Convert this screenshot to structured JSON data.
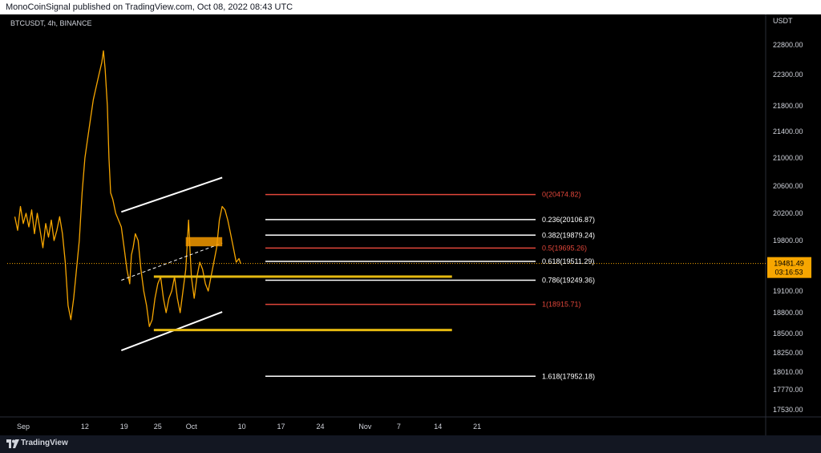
{
  "header": {
    "publish_info": "MonoCoinSignal published on TradingView.com, Oct 08, 2022 08:43 UTC"
  },
  "chart_meta": {
    "symbol_info": "BTCUSDT, 4h, BINANCE",
    "currency": "USDT"
  },
  "price_badge": {
    "price": "19481.49",
    "countdown": "03:16:53",
    "color": "#f7a600"
  },
  "footer": {
    "brand": "TradingView"
  },
  "colors": {
    "background": "#000000",
    "candle": "#f7a600",
    "fib_red": "#e0463a",
    "fib_white": "#ffffff",
    "zone_yellow": "#e5b910",
    "zone_orange": "#f49a00"
  },
  "chart_data": {
    "type": "line",
    "title": "",
    "ylabel": "USDT",
    "xlabel": "",
    "ylim": [
      17400,
      23300
    ],
    "grid": false,
    "y_ticks": [
      "22800.00",
      "22300.00",
      "21800.00",
      "21400.00",
      "21000.00",
      "20600.00",
      "20200.00",
      "19800.00",
      "19100.00",
      "18800.00",
      "18500.00",
      "18250.00",
      "18010.00",
      "17770.00",
      "17530.00"
    ],
    "x_ticks": [
      {
        "label": "Sep",
        "day": 0
      },
      {
        "label": "12",
        "day": 11
      },
      {
        "label": "19",
        "day": 18
      },
      {
        "label": "25",
        "day": 24
      },
      {
        "label": "Oct",
        "day": 30
      },
      {
        "label": "10",
        "day": 39
      },
      {
        "label": "17",
        "day": 46
      },
      {
        "label": "24",
        "day": 53
      },
      {
        "label": "Nov",
        "day": 61
      },
      {
        "label": "7",
        "day": 67
      },
      {
        "label": "14",
        "day": 74
      },
      {
        "label": "21",
        "day": 81
      }
    ],
    "series": [
      {
        "values": [
          [
            -1.5,
            20150
          ],
          [
            -1.0,
            19950
          ],
          [
            -0.5,
            20300
          ],
          [
            0.0,
            20050
          ],
          [
            0.5,
            20200
          ],
          [
            1.0,
            20000
          ],
          [
            1.5,
            20250
          ],
          [
            2.0,
            19900
          ],
          [
            2.5,
            20200
          ],
          [
            3.0,
            19950
          ],
          [
            3.5,
            19700
          ],
          [
            4.0,
            20050
          ],
          [
            4.5,
            19850
          ],
          [
            5.0,
            20100
          ],
          [
            5.5,
            19800
          ],
          [
            6.0,
            19950
          ],
          [
            6.5,
            20150
          ],
          [
            7.0,
            19900
          ],
          [
            7.5,
            19500
          ],
          [
            8.0,
            18900
          ],
          [
            8.5,
            18700
          ],
          [
            9.0,
            19000
          ],
          [
            9.5,
            19400
          ],
          [
            10.0,
            19800
          ],
          [
            10.5,
            20500
          ],
          [
            11.0,
            21000
          ],
          [
            11.5,
            21300
          ],
          [
            12.0,
            21600
          ],
          [
            12.5,
            21900
          ],
          [
            13.0,
            22100
          ],
          [
            13.5,
            22300
          ],
          [
            14.0,
            22500
          ],
          [
            14.3,
            22700
          ],
          [
            14.6,
            22400
          ],
          [
            15.0,
            21800
          ],
          [
            15.3,
            21000
          ],
          [
            15.6,
            20500
          ],
          [
            16.0,
            20400
          ],
          [
            16.5,
            20200
          ],
          [
            17.0,
            20100
          ],
          [
            17.5,
            20000
          ],
          [
            18.0,
            19700
          ],
          [
            18.5,
            19400
          ],
          [
            19.0,
            19200
          ],
          [
            19.3,
            19600
          ],
          [
            19.6,
            19700
          ],
          [
            20.0,
            19900
          ],
          [
            20.5,
            19800
          ],
          [
            21.0,
            19400
          ],
          [
            21.5,
            19100
          ],
          [
            22.0,
            18900
          ],
          [
            22.5,
            18600
          ],
          [
            23.0,
            18700
          ],
          [
            23.5,
            19000
          ],
          [
            24.0,
            19200
          ],
          [
            24.5,
            19300
          ],
          [
            25.0,
            19000
          ],
          [
            25.5,
            18800
          ],
          [
            26.0,
            19000
          ],
          [
            26.5,
            19100
          ],
          [
            27.0,
            19300
          ],
          [
            27.5,
            19000
          ],
          [
            28.0,
            18800
          ],
          [
            28.5,
            19100
          ],
          [
            29.0,
            19400
          ],
          [
            29.5,
            20100
          ],
          [
            29.8,
            19600
          ],
          [
            30.0,
            19300
          ],
          [
            30.5,
            19000
          ],
          [
            31.0,
            19300
          ],
          [
            31.5,
            19500
          ],
          [
            32.0,
            19400
          ],
          [
            32.5,
            19200
          ],
          [
            33.0,
            19100
          ],
          [
            33.5,
            19300
          ],
          [
            34.0,
            19500
          ],
          [
            34.5,
            19700
          ],
          [
            35.0,
            20100
          ],
          [
            35.5,
            20300
          ],
          [
            36.0,
            20250
          ],
          [
            36.5,
            20100
          ],
          [
            37.0,
            19900
          ],
          [
            37.5,
            19700
          ],
          [
            38.0,
            19500
          ],
          [
            38.5,
            19550
          ],
          [
            38.8,
            19480
          ]
        ]
      }
    ],
    "fibonacci": [
      {
        "ratio": "0",
        "price": 20474.82,
        "label": "0(20474.82)",
        "color": "#e0463a"
      },
      {
        "ratio": "0.236",
        "price": 20106.87,
        "label": "0.236(20106.87)",
        "color": "#ffffff"
      },
      {
        "ratio": "0.382",
        "price": 19879.24,
        "label": "0.382(19879.24)",
        "color": "#ffffff"
      },
      {
        "ratio": "0.5",
        "price": 19695.26,
        "label": "0.5(19695.26)",
        "color": "#e0463a"
      },
      {
        "ratio": "0.618",
        "price": 19511.29,
        "label": "0.618(19511.29)",
        "color": "#ffffff"
      },
      {
        "ratio": "0.786",
        "price": 19249.36,
        "label": "0.786(19249.36)",
        "color": "#ffffff"
      },
      {
        "ratio": "1",
        "price": 18915.71,
        "label": "1(18915.71)",
        "color": "#e0463a"
      },
      {
        "ratio": "1.618",
        "price": 17952.18,
        "label": "1.618(17952.18)",
        "color": "#ffffff"
      }
    ],
    "channel": {
      "upper": [
        [
          17.5,
          20220
        ],
        [
          35.5,
          20720
        ]
      ],
      "lower": [
        [
          17.5,
          18280
        ],
        [
          35.5,
          18810
        ]
      ],
      "mid": [
        [
          17.5,
          19250
        ],
        [
          35.5,
          19765
        ]
      ]
    },
    "zones": [
      {
        "price": 19300,
        "from_day": 23.3,
        "to_day": 76.5,
        "color": "#e5b910"
      },
      {
        "price": 18550,
        "from_day": 23.3,
        "to_day": 76.5,
        "color": "#e5b910"
      },
      {
        "price_top": 19850,
        "price_bottom": 19720,
        "from_day": 29,
        "to_day": 35.5,
        "color": "#f49a00"
      }
    ],
    "last_price": 19481.49
  }
}
